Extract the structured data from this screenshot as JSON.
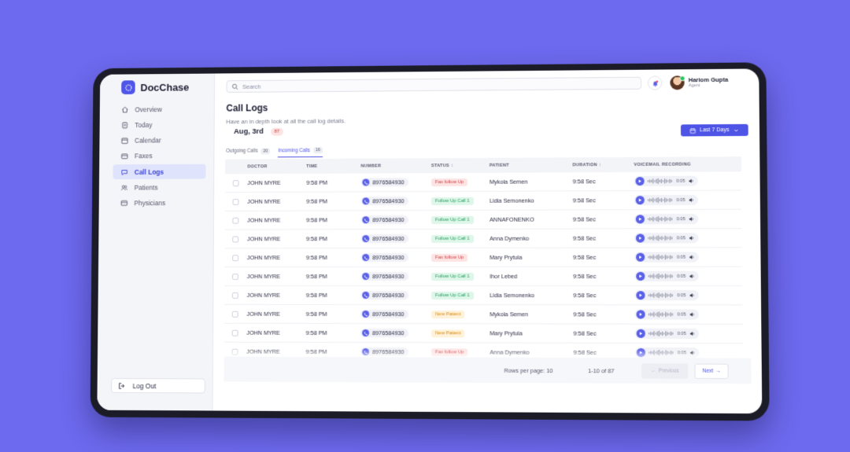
{
  "app": {
    "name": "DocChase",
    "brand_color": "#4f55e8"
  },
  "sidebar": {
    "items": [
      {
        "label": "Overview",
        "icon": "home-icon"
      },
      {
        "label": "Today",
        "icon": "clipboard-icon"
      },
      {
        "label": "Calendar",
        "icon": "calendar-icon"
      },
      {
        "label": "Faxes",
        "icon": "fax-icon"
      },
      {
        "label": "Call Logs",
        "icon": "chat-icon",
        "active": true
      },
      {
        "label": "Patients",
        "icon": "users-icon"
      },
      {
        "label": "Physicians",
        "icon": "card-icon"
      }
    ],
    "logout_label": "Log Out"
  },
  "header": {
    "search_placeholder": "Search",
    "user": {
      "name": "Hariom Gupta",
      "role": "Agent"
    }
  },
  "page": {
    "title": "Call Logs",
    "subtitle": "Have an in depth look at all the call log details.",
    "date_label": "Aug, 3rd",
    "date_count": "87",
    "range_button": "Last 7 Days"
  },
  "tabs": [
    {
      "label": "Outgoing Calls",
      "count": "20",
      "active": false
    },
    {
      "label": "Incoming Calls",
      "count": "16",
      "active": true
    }
  ],
  "table": {
    "headers": {
      "doctor": "DOCTOR",
      "time": "TIME",
      "number": "NUMBER",
      "status": "STATUS",
      "patient": "PATIENT",
      "duration": "DURATION",
      "voicemail": "VOICEMAIL RECORDING"
    },
    "rows": [
      {
        "doctor": "JOHN MYRE",
        "time": "9:58 PM",
        "number": "8976584930",
        "status": "Fax follow Up",
        "status_kind": "fax",
        "patient": "Mykola Semen",
        "duration": "9:58 Sec",
        "vm_time": "0:05"
      },
      {
        "doctor": "JOHN MYRE",
        "time": "9:58 PM",
        "number": "8976584930",
        "status": "Follow Up Call 1",
        "status_kind": "follow",
        "patient": "Lidia Semonenko",
        "duration": "9:58 Sec",
        "vm_time": "0:05"
      },
      {
        "doctor": "JOHN MYRE",
        "time": "9:58 PM",
        "number": "8976584930",
        "status": "Follow Up Call 1",
        "status_kind": "follow",
        "patient": "ANNAFONENKO",
        "duration": "9:58 Sec",
        "vm_time": "0:05"
      },
      {
        "doctor": "JOHN MYRE",
        "time": "9:58 PM",
        "number": "8976584930",
        "status": "Follow Up Call 1",
        "status_kind": "follow",
        "patient": "Anna Dymenko",
        "duration": "9:58 Sec",
        "vm_time": "0:05"
      },
      {
        "doctor": "JOHN MYRE",
        "time": "9:58 PM",
        "number": "8976584930",
        "status": "Fax follow Up",
        "status_kind": "fax",
        "patient": "Mary Prytula",
        "duration": "9:58 Sec",
        "vm_time": "0:05"
      },
      {
        "doctor": "JOHN MYRE",
        "time": "9:58 PM",
        "number": "8976584930",
        "status": "Follow Up Call 1",
        "status_kind": "follow",
        "patient": "Ihor Lebed",
        "duration": "9:58 Sec",
        "vm_time": "0:05"
      },
      {
        "doctor": "JOHN MYRE",
        "time": "9:58 PM",
        "number": "8976584930",
        "status": "Follow Up Call 1",
        "status_kind": "follow",
        "patient": "Lidia Semonenko",
        "duration": "9:58 Sec",
        "vm_time": "0:05"
      },
      {
        "doctor": "JOHN MYRE",
        "time": "9:58 PM",
        "number": "8976584930",
        "status": "New Patient",
        "status_kind": "new",
        "patient": "Mykola Semen",
        "duration": "9:58 Sec",
        "vm_time": "0:05"
      },
      {
        "doctor": "JOHN MYRE",
        "time": "9:58 PM",
        "number": "8976584930",
        "status": "New Patient",
        "status_kind": "new",
        "patient": "Mary Prytula",
        "duration": "9:58 Sec",
        "vm_time": "0:05"
      },
      {
        "doctor": "JOHN MYRE",
        "time": "9:58 PM",
        "number": "8976584930",
        "status": "Fax follow Up",
        "status_kind": "fax",
        "patient": "Anna Dymenko",
        "duration": "9:58 Sec",
        "vm_time": "0:05"
      }
    ]
  },
  "pagination": {
    "rows_per_page_label": "Rows per page: 10",
    "range_label": "1-10 of 87",
    "prev_label": "Previous",
    "next_label": "Next"
  }
}
